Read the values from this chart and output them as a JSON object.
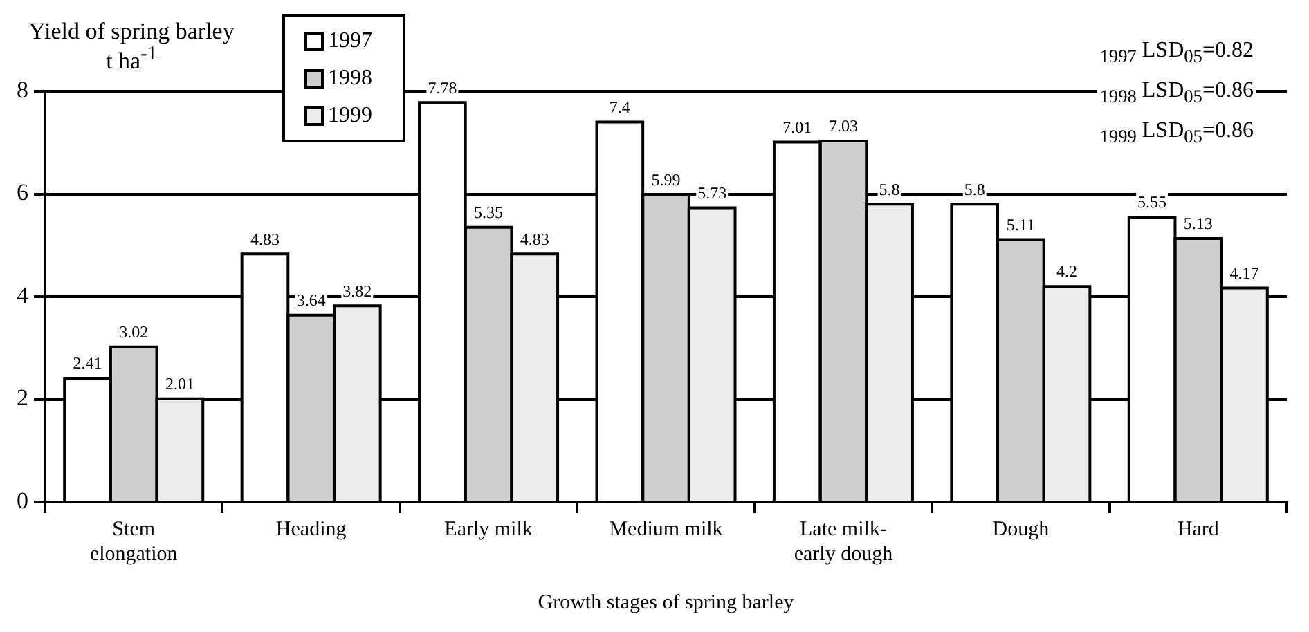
{
  "chart_data": {
    "type": "bar",
    "ylabel": "Yield of spring barley t ha$^{-1}$",
    "xlabel": "Growth stages of spring barley",
    "categories": [
      "Stem elongation",
      "Heading",
      "Early milk",
      "Medium milk",
      "Late milk-early dough",
      "Dough",
      "Hard"
    ],
    "series": [
      {
        "name": "1997",
        "color": "#ffffff",
        "values": [
          2.41,
          4.83,
          7.78,
          7.4,
          7.01,
          5.8,
          5.55
        ]
      },
      {
        "name": "1998",
        "color": "#cfcfcf",
        "values": [
          3.02,
          3.64,
          5.35,
          5.99,
          7.03,
          5.11,
          5.13
        ]
      },
      {
        "name": "1999",
        "color": "#ececec",
        "values": [
          2.01,
          3.82,
          4.83,
          5.73,
          5.8,
          4.2,
          4.17
        ]
      }
    ],
    "ylim": [
      0,
      8
    ],
    "yticks": [
      0,
      2,
      4,
      6,
      8
    ],
    "grid": "y",
    "legend": "top left",
    "data_labels": true,
    "annotations": [
      "$_{1997}$ LSD$_{05}$=0.82",
      "$_{1998}$ LSD$_{05}$=0.86",
      "$_{1999}$ LSD$_{05}$=0.86"
    ]
  }
}
